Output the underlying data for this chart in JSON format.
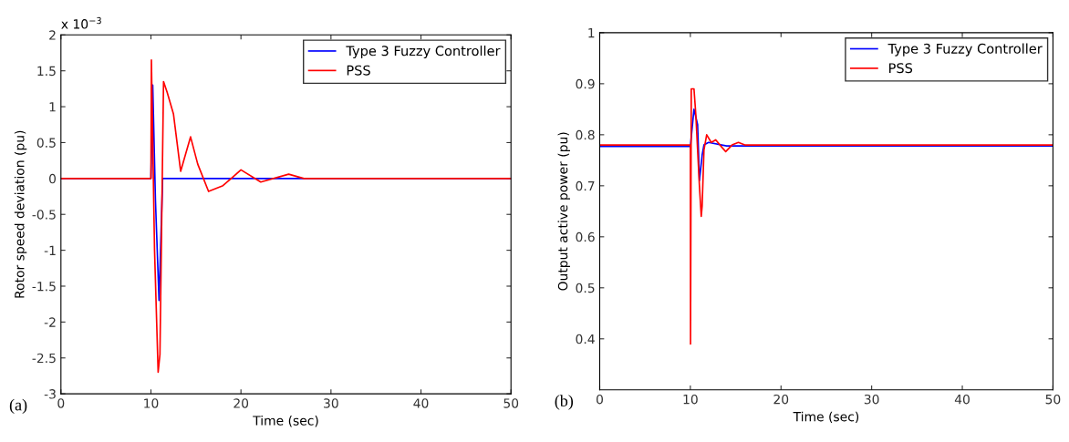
{
  "chart_data": [
    {
      "type": "line",
      "xlabel": "Time (sec)",
      "ylabel": "Rotor speed deviation (pu)",
      "xlim": [
        0,
        50
      ],
      "xticks": [
        0,
        10,
        20,
        30,
        40,
        50
      ],
      "ylim": [
        -3,
        2
      ],
      "yticks": [
        -3,
        -2.5,
        -2,
        -1.5,
        -1,
        -0.5,
        0,
        0.5,
        1,
        1.5,
        2
      ],
      "grid": false,
      "legend": "top right",
      "annotations": [
        "x 10$^{−3}$",
        "(a)"
      ],
      "series": [
        {
          "name": "Type 3 Fuzzy Controller",
          "color": "#0000ff",
          "x": [
            0,
            10,
            10.2,
            10.5,
            10.9,
            11.3,
            12,
            50
          ],
          "values": [
            0,
            0,
            1.3,
            -0.3,
            -1.7,
            0,
            0,
            0
          ]
        },
        {
          "name": "PSS",
          "color": "#ff0000",
          "x": [
            0,
            10,
            10.05,
            10.4,
            10.8,
            11.0,
            11.4,
            11.8,
            12.5,
            13.3,
            14.4,
            15.2,
            16.4,
            18,
            20,
            22.2,
            25.3,
            27,
            50
          ],
          "values": [
            0,
            0,
            1.65,
            -1.0,
            -2.7,
            -2.45,
            1.35,
            1.2,
            0.9,
            0.1,
            0.58,
            0.2,
            -0.18,
            -0.1,
            0.12,
            -0.05,
            0.06,
            0,
            0
          ]
        }
      ]
    },
    {
      "type": "line",
      "xlabel": "Time (sec)",
      "ylabel": "Output active power (pu)",
      "xlim": [
        0,
        50
      ],
      "xticks": [
        0,
        10,
        20,
        30,
        40,
        50
      ],
      "ylim": [
        0.3,
        1
      ],
      "yticks": [
        0.4,
        0.5,
        0.6,
        0.7,
        0.8,
        0.9,
        1
      ],
      "grid": false,
      "legend": "top right",
      "annotations": [
        "(b)"
      ],
      "series": [
        {
          "name": "Type 3 Fuzzy Controller",
          "color": "#0000ff",
          "x": [
            0,
            10,
            10.4,
            10.8,
            11.0,
            11.3,
            11.5,
            12,
            14,
            50
          ],
          "values": [
            0.777,
            0.777,
            0.85,
            0.82,
            0.71,
            0.76,
            0.78,
            0.785,
            0.778,
            0.778
          ]
        },
        {
          "name": "PSS",
          "color": "#ff0000",
          "x": [
            0,
            10,
            10.02,
            10.1,
            10.4,
            10.6,
            11,
            11.2,
            11.3,
            11.5,
            11.8,
            12.3,
            12.8,
            13.5,
            13.9,
            14.6,
            15.3,
            16,
            50
          ],
          "values": [
            0.78,
            0.78,
            0.39,
            0.89,
            0.89,
            0.84,
            0.7,
            0.64,
            0.66,
            0.77,
            0.8,
            0.785,
            0.79,
            0.775,
            0.767,
            0.78,
            0.785,
            0.78,
            0.78
          ]
        }
      ]
    }
  ]
}
